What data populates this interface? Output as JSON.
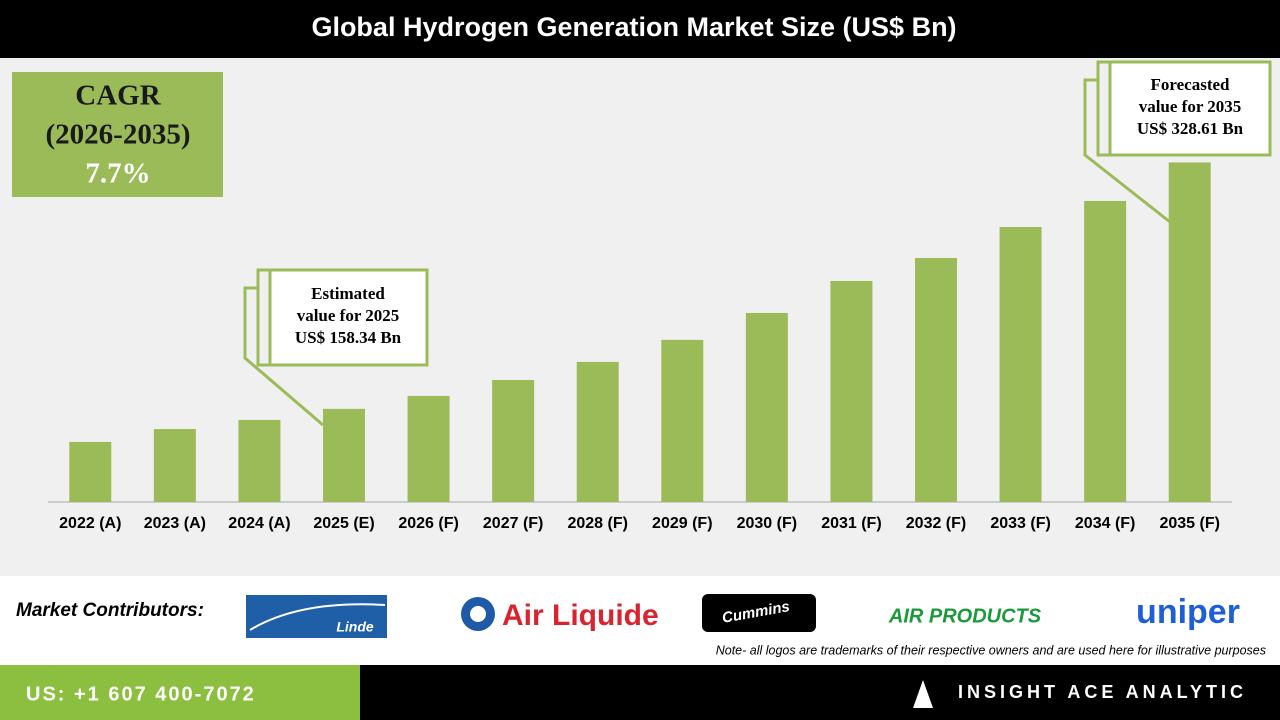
{
  "chart_data": {
    "type": "bar",
    "title": "Global Hydrogen Generation Market Size (US$ Bn)",
    "categories": [
      "2022 (A)",
      "2023 (A)",
      "2024 (A)",
      "2025 (E)",
      "2026 (F)",
      "2027 (F)",
      "2028 (F)",
      "2029 (F)",
      "2030 (F)",
      "2031 (F)",
      "2032 (F)",
      "2033 (F)",
      "2034 (F)",
      "2035 (F)"
    ],
    "values": [
      135.5,
      144.4,
      150.7,
      158.34,
      167.3,
      178.3,
      190.8,
      206,
      224.6,
      246.7,
      262.6,
      284,
      302,
      328.61
    ],
    "color": "#9bbb59",
    "ylim": [
      94,
      398
    ],
    "cagr": {
      "label": "CAGR",
      "period": "(2026-2035)",
      "value": "7.7%"
    },
    "annotations": [
      {
        "lines": [
          "Estimated",
          "value for 2025",
          "US$ 158.34 Bn"
        ]
      },
      {
        "lines": [
          "Forecasted",
          "value for 2035",
          "US$ 328.61 Bn"
        ]
      }
    ]
  },
  "footer": {
    "contributors_label": "Market Contributors:",
    "logos": [
      "Linde",
      "Air Liquide",
      "Cummins",
      "AIR PRODUCTS",
      "uniper"
    ],
    "note": "Note- all logos are trademarks of their respective owners and are used here for illustrative purposes",
    "phone": "US: +1 607 400-7072",
    "brand": "INSIGHT ACE ANALYTIC"
  }
}
